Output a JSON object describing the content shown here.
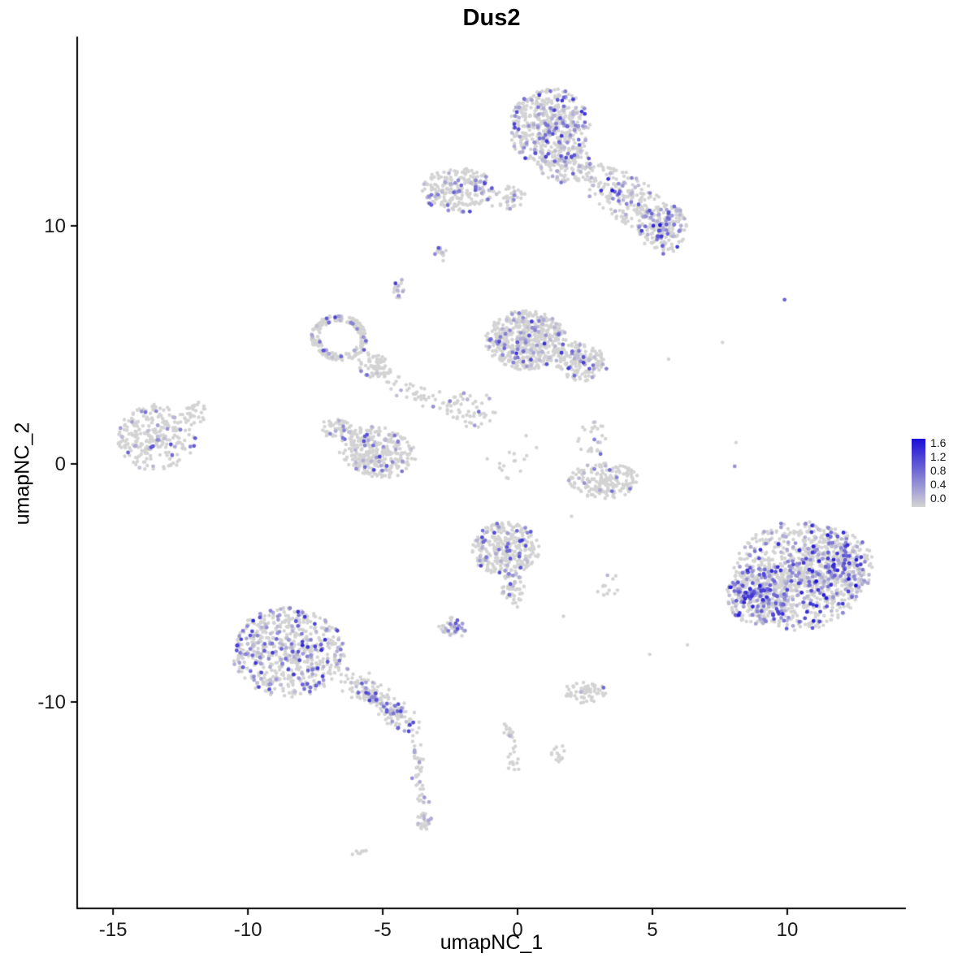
{
  "chart_data": {
    "type": "scatter",
    "title": "Dus2",
    "xlabel": "umapNC_1",
    "ylabel": "umapNC_2",
    "x_ticks": [
      "-15",
      "-10",
      "-5",
      "0",
      "5",
      "10"
    ],
    "x_tick_values": [
      -15,
      -10,
      -5,
      0,
      5,
      10
    ],
    "y_ticks": [
      "10",
      "0",
      "-10"
    ],
    "y_tick_values": [
      10,
      0,
      -10
    ],
    "x_range": [
      -16.33,
      14.4
    ],
    "y_range": [
      -18.67,
      17.95
    ],
    "grid": false,
    "legend_position": "right",
    "point_radius": 2.2,
    "gray_color": "#D3D3D3",
    "legend": {
      "labels": [
        "1.6",
        "1.2",
        "0.8",
        "0.4",
        "0.0"
      ],
      "values": [
        1.6,
        1.2,
        0.8,
        0.4,
        0.0
      ],
      "low": "#D3D3D3",
      "high": "#1A0DD6",
      "vmin": 0,
      "vmax": 1.6
    },
    "clusters": [
      {
        "id": "top-main",
        "shape": "blob",
        "cx": 1.2,
        "cy": 14.1,
        "rx": 1.5,
        "ry": 1.7,
        "rot": 0,
        "n": 480,
        "frac": 0.22,
        "vmax": 1.3
      },
      {
        "id": "top-main-fringe",
        "shape": "blob",
        "cx": 1.8,
        "cy": 12.6,
        "rx": 1.0,
        "ry": 0.8,
        "rot": 0,
        "n": 120,
        "frac": 0.18,
        "vmax": 1.2
      },
      {
        "id": "top-arm",
        "shape": "blob",
        "cx": 4.1,
        "cy": 11.1,
        "rx": 2.1,
        "ry": 0.95,
        "rot": -38,
        "n": 240,
        "frac": 0.16,
        "vmax": 1.6
      },
      {
        "id": "top-arm-end",
        "shape": "blob",
        "cx": 5.4,
        "cy": 9.9,
        "rx": 0.9,
        "ry": 1.1,
        "rot": 0,
        "n": 150,
        "frac": 0.3,
        "vmax": 1.4
      },
      {
        "id": "top-left-blob",
        "shape": "blob",
        "cx": -2.2,
        "cy": 11.5,
        "rx": 1.35,
        "ry": 0.95,
        "rot": 0,
        "n": 240,
        "frac": 0.14,
        "vmax": 1.2
      },
      {
        "id": "top-bridge",
        "shape": "blob",
        "cx": -0.4,
        "cy": 11.2,
        "rx": 0.8,
        "ry": 0.5,
        "rot": 0,
        "n": 45,
        "frac": 0.1,
        "vmax": 1.0
      },
      {
        "id": "spot-a",
        "shape": "blob",
        "cx": -2.85,
        "cy": 8.9,
        "rx": 0.22,
        "ry": 0.45,
        "rot": 0,
        "n": 12,
        "frac": 0.35,
        "vmax": 1.2
      },
      {
        "id": "spot-b",
        "shape": "blob",
        "cx": -4.5,
        "cy": 7.4,
        "rx": 0.35,
        "ry": 0.5,
        "rot": 0,
        "n": 16,
        "frac": 0.3,
        "vmax": 1.2
      },
      {
        "id": "mid-main",
        "shape": "blob",
        "cx": 0.3,
        "cy": 5.2,
        "rx": 1.5,
        "ry": 1.25,
        "rot": 0,
        "n": 520,
        "frac": 0.13,
        "vmax": 1.3
      },
      {
        "id": "mid-right",
        "shape": "blob",
        "cx": 2.3,
        "cy": 4.3,
        "rx": 1.05,
        "ry": 0.8,
        "rot": -20,
        "n": 170,
        "frac": 0.16,
        "vmax": 1.3
      },
      {
        "id": "left-ring",
        "shape": "ring",
        "cx": -6.6,
        "cy": 5.3,
        "rx": 1.05,
        "ry": 0.95,
        "rot": -15,
        "n": 210,
        "frac": 0.12,
        "vmax": 1.3
      },
      {
        "id": "ring-tail",
        "shape": "blob",
        "cx": -5.3,
        "cy": 4.1,
        "rx": 0.75,
        "ry": 0.5,
        "rot": -30,
        "n": 70,
        "frac": 0.1,
        "vmax": 1.1
      },
      {
        "id": "chain-mid",
        "shape": "line",
        "x1": -4.9,
        "y1": 3.6,
        "x2": -2.2,
        "y2": 2.2,
        "w": 0.45,
        "n": 55,
        "frac": 0.06,
        "vmax": 1.0
      },
      {
        "id": "sparse-center",
        "shape": "blob",
        "cx": -1.6,
        "cy": 2.3,
        "rx": 1.0,
        "ry": 0.8,
        "rot": 0,
        "n": 40,
        "frac": 0.05,
        "vmax": 0.9
      },
      {
        "id": "cluster-f",
        "shape": "blob",
        "cx": -5.2,
        "cy": 0.5,
        "rx": 1.45,
        "ry": 1.05,
        "rot": -15,
        "n": 360,
        "frac": 0.1,
        "vmax": 1.2
      },
      {
        "id": "cluster-f-tail",
        "shape": "blob",
        "cx": -6.7,
        "cy": 1.5,
        "rx": 0.6,
        "ry": 0.45,
        "rot": 0,
        "n": 45,
        "frac": 0.1,
        "vmax": 1.0
      },
      {
        "id": "far-left",
        "shape": "blob",
        "cx": -13.4,
        "cy": 1.1,
        "rx": 1.45,
        "ry": 1.4,
        "rot": 0,
        "n": 270,
        "frac": 0.13,
        "vmax": 1.2
      },
      {
        "id": "far-left-nub",
        "shape": "blob",
        "cx": -11.9,
        "cy": 2.2,
        "rx": 0.4,
        "ry": 0.5,
        "rot": 0,
        "n": 25,
        "frac": 0.1,
        "vmax": 1.0
      },
      {
        "id": "mid-bottom",
        "shape": "blob",
        "cx": -0.45,
        "cy": -3.6,
        "rx": 1.25,
        "ry": 1.15,
        "rot": 0,
        "n": 300,
        "frac": 0.16,
        "vmax": 1.3
      },
      {
        "id": "mid-bottom-tail",
        "shape": "blob",
        "cx": -0.2,
        "cy": -5.3,
        "rx": 0.45,
        "ry": 0.8,
        "rot": 0,
        "n": 55,
        "frac": 0.12,
        "vmax": 1.1
      },
      {
        "id": "small-i",
        "shape": "blob",
        "cx": -2.4,
        "cy": -6.9,
        "rx": 0.55,
        "ry": 0.45,
        "rot": 0,
        "n": 40,
        "frac": 0.25,
        "vmax": 1.1
      },
      {
        "id": "crescent-j",
        "shape": "blob",
        "cx": 3.2,
        "cy": -0.7,
        "rx": 1.3,
        "ry": 0.75,
        "rot": 0,
        "n": 190,
        "frac": 0.06,
        "vmax": 1.1
      },
      {
        "id": "above-j",
        "shape": "blob",
        "cx": 2.8,
        "cy": 1.1,
        "rx": 0.6,
        "ry": 0.8,
        "rot": 0,
        "n": 28,
        "frac": 0.1,
        "vmax": 1.0
      },
      {
        "id": "right-main",
        "shape": "blob",
        "cx": 10.4,
        "cy": -4.7,
        "rx": 2.4,
        "ry": 2.3,
        "rot": 0,
        "n": 850,
        "frac": 0.28,
        "vmax": 1.5
      },
      {
        "id": "right-dense",
        "shape": "blob",
        "cx": 8.9,
        "cy": -5.5,
        "rx": 1.15,
        "ry": 1.25,
        "rot": 0,
        "n": 260,
        "frac": 0.5,
        "vmax": 1.5
      },
      {
        "id": "right-east",
        "shape": "blob",
        "cx": 11.9,
        "cy": -4.2,
        "rx": 1.3,
        "ry": 1.5,
        "rot": 0,
        "n": 280,
        "frac": 0.3,
        "vmax": 1.6
      },
      {
        "id": "bottom-left",
        "shape": "blob",
        "cx": -8.5,
        "cy": -7.9,
        "rx": 2.1,
        "ry": 1.9,
        "rot": 0,
        "n": 620,
        "frac": 0.24,
        "vmax": 1.4
      },
      {
        "id": "bl-arm",
        "shape": "line",
        "x1": -6.3,
        "y1": -8.9,
        "x2": -4.0,
        "y2": -10.9,
        "w": 0.55,
        "n": 190,
        "frac": 0.2,
        "vmax": 1.3
      },
      {
        "id": "trail-n",
        "shape": "line",
        "x1": -3.9,
        "y1": -11.3,
        "x2": -3.5,
        "y2": -14.4,
        "w": 0.3,
        "n": 40,
        "frac": 0.15,
        "vmax": 1.2
      },
      {
        "id": "trail-blob",
        "shape": "blob",
        "cx": -3.5,
        "cy": -15.0,
        "rx": 0.3,
        "ry": 0.5,
        "rot": 0,
        "n": 26,
        "frac": 0.2,
        "vmax": 1.2
      },
      {
        "id": "tiny-sw",
        "shape": "blob",
        "cx": -5.9,
        "cy": -16.3,
        "rx": 0.35,
        "ry": 0.15,
        "rot": 0,
        "n": 7,
        "frac": 0.0,
        "vmax": 0.0
      },
      {
        "id": "micro-trail",
        "shape": "line",
        "x1": -0.45,
        "y1": -10.9,
        "x2": -0.1,
        "y2": -12.9,
        "w": 0.3,
        "n": 28,
        "frac": 0.12,
        "vmax": 1.1
      },
      {
        "id": "micro-blob",
        "shape": "blob",
        "cx": 1.5,
        "cy": -12.2,
        "rx": 0.35,
        "ry": 0.4,
        "rot": 0,
        "n": 14,
        "frac": 0.1,
        "vmax": 1.0
      },
      {
        "id": "small-k2",
        "shape": "blob",
        "cx": 2.5,
        "cy": -9.6,
        "rx": 0.8,
        "ry": 0.45,
        "rot": 0,
        "n": 65,
        "frac": 0.08,
        "vmax": 1.1
      },
      {
        "id": "sparse-se",
        "shape": "blob",
        "cx": 3.3,
        "cy": -4.7,
        "rx": 0.55,
        "ry": 0.9,
        "rot": 0,
        "n": 12,
        "frac": 0.08,
        "vmax": 0.9
      },
      {
        "id": "sparse-mid-gap",
        "shape": "blob",
        "cx": -0.3,
        "cy": 0.3,
        "rx": 1.1,
        "ry": 1.2,
        "rot": 0,
        "n": 16,
        "frac": 0.04,
        "vmax": 0.8
      }
    ],
    "singles": [
      {
        "x": 9.9,
        "y": 6.9,
        "v": 0.95
      },
      {
        "x": 7.6,
        "y": 5.1,
        "v": 0
      },
      {
        "x": 8.1,
        "y": 0.9,
        "v": 0
      },
      {
        "x": 8.05,
        "y": -0.1,
        "v": 0.5
      },
      {
        "x": 5.6,
        "y": 4.4,
        "v": 0
      },
      {
        "x": 4.9,
        "y": -8.0,
        "v": 0
      },
      {
        "x": 6.3,
        "y": -7.6,
        "v": 0
      },
      {
        "x": 2.0,
        "y": -2.2,
        "v": 0
      },
      {
        "x": 1.7,
        "y": -6.4,
        "v": 0
      }
    ]
  }
}
